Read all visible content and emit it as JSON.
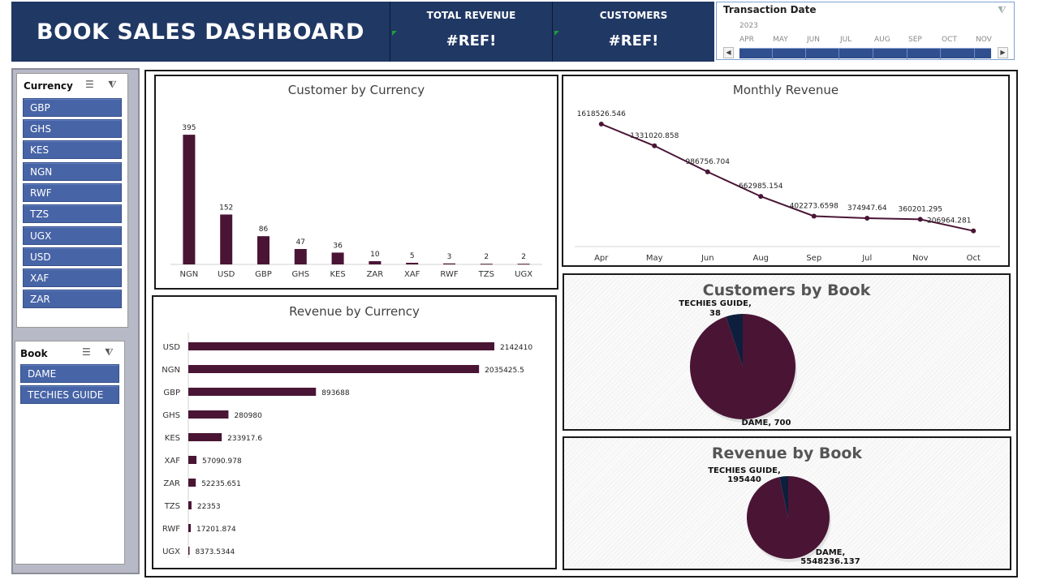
{
  "header": {
    "title": "BOOK SALES DASHBOARD",
    "kpis": [
      {
        "label": "TOTAL REVENUE",
        "value": "#REF!"
      },
      {
        "label": "CUSTOMERS",
        "value": "#REF!"
      }
    ]
  },
  "timeline": {
    "title": "Transaction Date",
    "year": "2023",
    "months": [
      "APR",
      "MAY",
      "JUN",
      "JUL",
      "AUG",
      "SEP",
      "OCT",
      "NOV"
    ]
  },
  "slicers": {
    "currency": {
      "title": "Currency",
      "items": [
        "GBP",
        "GHS",
        "KES",
        "NGN",
        "RWF",
        "TZS",
        "UGX",
        "USD",
        "XAF",
        "ZAR"
      ]
    },
    "book": {
      "title": "Book",
      "items": [
        "DAME",
        "TECHIES GUIDE"
      ]
    }
  },
  "colors": {
    "header_bg": "#203864",
    "bar": "#4a1535",
    "pie_main": "#4a1535",
    "pie_minor": "#0d1f3c",
    "slicer_button": "#4764a6"
  },
  "chart_data": [
    {
      "id": "customer_by_currency",
      "type": "bar",
      "title": "Customer by Currency",
      "categories": [
        "NGN",
        "USD",
        "GBP",
        "GHS",
        "KES",
        "ZAR",
        "XAF",
        "RWF",
        "TZS",
        "UGX"
      ],
      "values": [
        395,
        152,
        86,
        47,
        36,
        10,
        5,
        3,
        2,
        2
      ],
      "labels": [
        "395",
        "152",
        "86",
        "47",
        "36",
        "10",
        "5",
        "3",
        "2",
        "2"
      ],
      "ylim": [
        0,
        420
      ]
    },
    {
      "id": "monthly_revenue",
      "type": "line",
      "title": "Monthly Revenue",
      "categories": [
        "Apr",
        "May",
        "Jun",
        "Aug",
        "Sep",
        "Jul",
        "Nov",
        "Oct"
      ],
      "values": [
        1618526.546,
        1331020.858,
        986756.704,
        662985.154,
        402273.6598,
        374947.64,
        360201.295,
        206964.281
      ],
      "labels": [
        "1618526.546",
        "1331020.858",
        "986756.704",
        "662985.154",
        "402273.6598",
        "374947.64",
        "360201.295",
        "206964.281"
      ],
      "ylim": [
        0,
        1800000
      ]
    },
    {
      "id": "revenue_by_currency",
      "type": "bar",
      "orientation": "horizontal",
      "title": "Revenue by Currency",
      "categories": [
        "USD",
        "NGN",
        "GBP",
        "GHS",
        "KES",
        "XAF",
        "ZAR",
        "TZS",
        "RWF",
        "UGX"
      ],
      "values": [
        2142410,
        2035425.5,
        893688,
        280980,
        233917.6,
        57090.978,
        52235.651,
        22353,
        17201.874,
        8373.5344
      ],
      "labels": [
        "2142410",
        "2035425.5",
        "893688",
        "280980",
        "233917.6",
        "57090.978",
        "52235.651",
        "22353",
        "17201.874",
        "8373.5344"
      ],
      "xlim": [
        0,
        2142410
      ]
    },
    {
      "id": "customers_by_book",
      "type": "pie",
      "title": "Customers by Book",
      "categories": [
        "DAME",
        "TECHIES GUIDE"
      ],
      "values": [
        700,
        38
      ],
      "labels": [
        "DAME, 700",
        "TECHIES GUIDE,|38"
      ]
    },
    {
      "id": "revenue_by_book",
      "type": "pie",
      "title": "Revenue by Book",
      "categories": [
        "DAME",
        "TECHIES GUIDE"
      ],
      "values": [
        5548236.137,
        195440
      ],
      "labels": [
        "DAME,|5548236.137",
        "TECHIES GUIDE,|195440"
      ]
    }
  ]
}
